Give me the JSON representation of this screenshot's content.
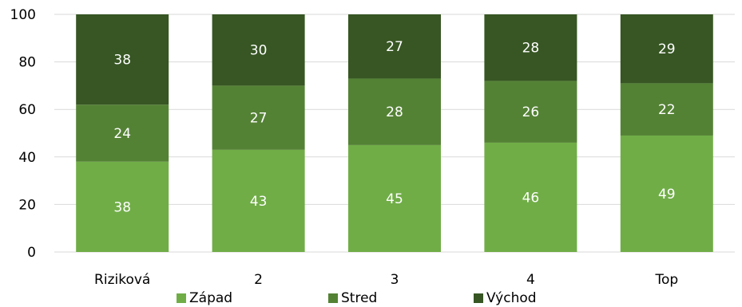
{
  "chart_data": {
    "type": "bar",
    "stacked": true,
    "title": "",
    "xlabel": "",
    "ylabel": "",
    "ylim": [
      0,
      100
    ],
    "yticks": [
      0,
      20,
      40,
      60,
      80,
      100
    ],
    "grid": true,
    "legend_position": "bottom",
    "categories": [
      "Riziková",
      "2",
      "3",
      "4",
      "Top"
    ],
    "series": [
      {
        "name": "Západ",
        "color": "#70ad47",
        "values": [
          38,
          43,
          45,
          46,
          49
        ]
      },
      {
        "name": "Stred",
        "color": "#548235",
        "values": [
          24,
          27,
          28,
          26,
          22
        ]
      },
      {
        "name": "Východ",
        "color": "#375623",
        "values": [
          38,
          30,
          27,
          28,
          29
        ]
      }
    ]
  }
}
